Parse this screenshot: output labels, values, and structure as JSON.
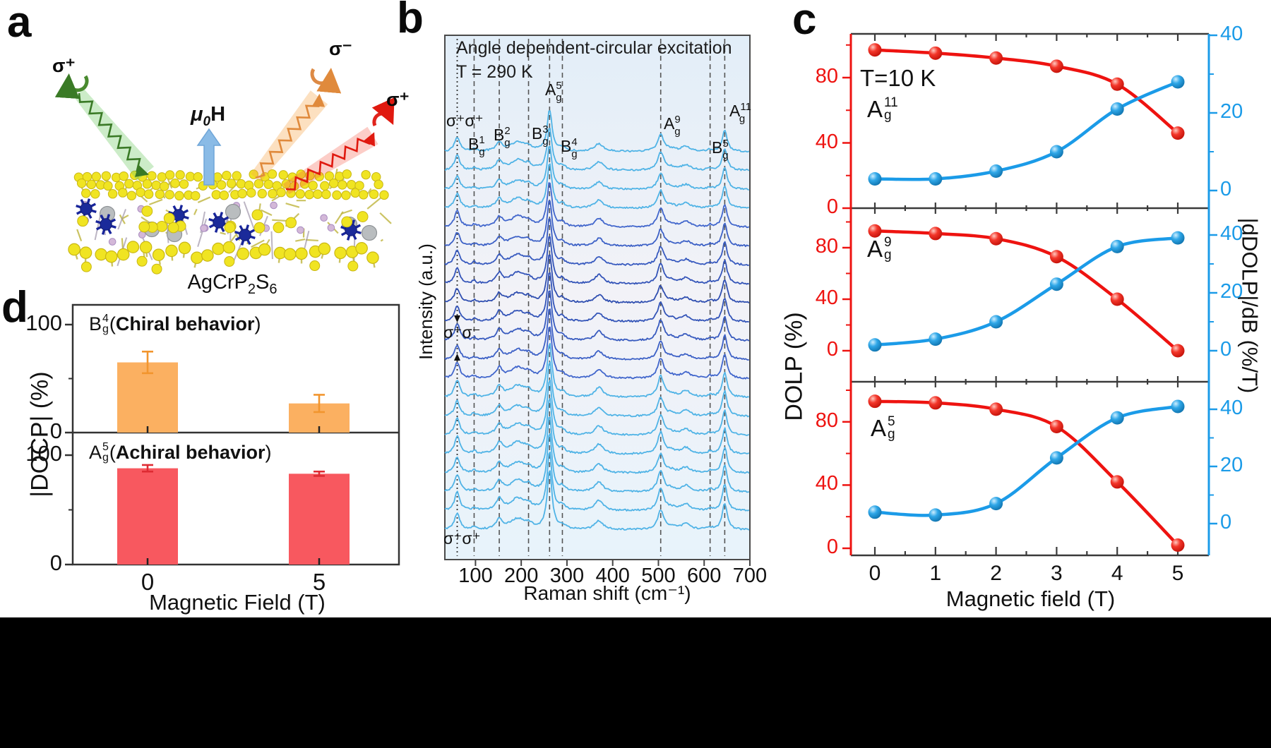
{
  "panel_a": {
    "label": "a",
    "sigma_incident": "σ⁺",
    "sigma_out_cross": "σ⁻",
    "sigma_out_co": "σ⁺",
    "field": {
      "mu": "μ",
      "sub": "0",
      "h": "H"
    },
    "material": {
      "p1": "AgCrP",
      "s1": "2",
      "p2": "S",
      "s2": "6"
    },
    "colors": {
      "incident_beam": "#3a7a26",
      "cross_beam": "#e08a3c",
      "co_beam": "#e0190f",
      "field_arrow": "#8abbe6",
      "sulfur": "#f0e422",
      "chromium": "#1b2a9a",
      "silver": "#b9bdbf",
      "phosphorus": "#d3b8d8"
    }
  },
  "panel_b": {
    "label": "b",
    "title1": "Angle dependent-circular excitation",
    "title2": "T = 290 K",
    "xlabel": "Raman shift (cm⁻¹)",
    "ylabel": "Intensity (a.u.)",
    "pol_top": "σ⁺σ⁺",
    "pol_mid": "σ⁺σ⁻",
    "pol_bottom": "σ⁺σ⁺"
  },
  "panel_c": {
    "label": "c",
    "annotation": "T=10 K",
    "xlabel": "Magnetic field (T)",
    "ylabel_left": "DOLP (%)",
    "ylabel_right": "|dDOLP|/dB (%/T)"
  },
  "panel_d": {
    "label": "d",
    "xlabel": "Magnetic Field (T)",
    "ylabel": "|DOCP| (%)",
    "paren_open": "(",
    "paren_close": ")"
  },
  "chart_data": [
    {
      "id": "raman_spectra",
      "type": "line",
      "title": "Angle dependent-circular excitation",
      "subtitle": "T = 290 K",
      "xlabel": "Raman shift (cm⁻¹)",
      "ylabel": "Intensity (a.u.)",
      "x_range": [
        33,
        700
      ],
      "x_ticks": [
        100,
        200,
        300,
        400,
        500,
        600,
        700
      ],
      "n_traces": 21,
      "trace_colors": {
        "copolarized": "#4fb3e6",
        "crosspolarized": "#3c5ec6"
      },
      "polarization_labels": {
        "top": "σ⁺σ⁺",
        "middle": "σ⁺σ⁻",
        "bottom": "σ⁺σ⁺"
      },
      "marked_peaks": [
        {
          "label": "σ⁺σ⁺",
          "shift": 60,
          "line": "dotted"
        },
        {
          "letter": "B",
          "sub": "g",
          "sup": "1",
          "shift": 97,
          "line": "dashed"
        },
        {
          "letter": "B",
          "sub": "g",
          "sup": "2",
          "shift": 152,
          "line": "dashed"
        },
        {
          "letter": "B",
          "sub": "g",
          "sup": "3",
          "shift": 216,
          "line": "dashed"
        },
        {
          "letter": "A",
          "sub": "g",
          "sup": "5",
          "shift": 262,
          "line": "dashed"
        },
        {
          "letter": "B",
          "sub": "g",
          "sup": "4",
          "shift": 290,
          "line": "dashed"
        },
        {
          "letter": "A",
          "sub": "g",
          "sup": "9",
          "shift": 505,
          "line": "dashed"
        },
        {
          "letter": "B",
          "sub": "g",
          "sup": "5",
          "shift": 613,
          "line": "dashed"
        },
        {
          "letter": "A",
          "sub": "g",
          "sup": "11",
          "shift": 645,
          "line": "dashed"
        }
      ],
      "unlabeled_peaks": [
        192,
        370,
        528,
        560
      ]
    },
    {
      "id": "dolp_Ag11",
      "type": "line",
      "mode": {
        "letter": "A",
        "sub": "g",
        "sup": "11"
      },
      "x": [
        0,
        1,
        2,
        3,
        4,
        5
      ],
      "series": [
        {
          "name": "DOLP (%)",
          "axis": "left",
          "color": "#ee1310",
          "values": [
            97,
            95,
            92,
            87,
            76,
            46
          ]
        },
        {
          "name": "|dDOLP|/dB (%/T)",
          "axis": "right",
          "color": "#1b9be8",
          "values": [
            3,
            3,
            5,
            10,
            21,
            28
          ]
        }
      ],
      "left_ticks": [
        0,
        40,
        80
      ],
      "right_ticks": [
        0,
        20,
        40
      ]
    },
    {
      "id": "dolp_Ag9",
      "type": "line",
      "mode": {
        "letter": "A",
        "sub": "g",
        "sup": "9"
      },
      "x": [
        0,
        1,
        2,
        3,
        4,
        5
      ],
      "series": [
        {
          "name": "DOLP (%)",
          "axis": "left",
          "color": "#ee1310",
          "values": [
            93,
            91,
            87,
            73,
            40,
            0
          ]
        },
        {
          "name": "|dDOLP|/dB (%/T)",
          "axis": "right",
          "color": "#1b9be8",
          "values": [
            2,
            4,
            10,
            23,
            36,
            39
          ]
        }
      ],
      "left_ticks": [
        0,
        40,
        80
      ],
      "right_ticks": [
        0,
        20,
        40
      ]
    },
    {
      "id": "dolp_Ag5",
      "type": "line",
      "mode": {
        "letter": "A",
        "sub": "g",
        "sup": "5"
      },
      "x": [
        0,
        1,
        2,
        3,
        4,
        5
      ],
      "series": [
        {
          "name": "DOLP (%)",
          "axis": "left",
          "color": "#ee1310",
          "values": [
            93,
            92,
            88,
            77,
            42,
            2
          ]
        },
        {
          "name": "|dDOLP|/dB (%/T)",
          "axis": "right",
          "color": "#1b9be8",
          "values": [
            4,
            3,
            7,
            23,
            37,
            41
          ]
        }
      ],
      "left_ticks": [
        0,
        40,
        80
      ],
      "right_ticks": [
        0,
        20,
        40
      ]
    },
    {
      "id": "docp_bars",
      "type": "bar",
      "categories": [
        "0",
        "5"
      ],
      "xlabel": "Magnetic Field (T)",
      "ylabel": "|DOCP| (%)",
      "y_ticks": [
        0,
        100
      ],
      "ylim": [
        0,
        118
      ],
      "series": [
        {
          "mode": {
            "letter": "B",
            "sub": "g",
            "sup": "4"
          },
          "behavior": "Chiral behavior",
          "color": "#fbb061",
          "error_color": "#f2952e",
          "values": [
            65,
            27
          ],
          "errors": [
            10,
            8
          ]
        },
        {
          "mode": {
            "letter": "A",
            "sub": "g",
            "sup": "5"
          },
          "behavior": "Achiral behavior",
          "color": "#f8585f",
          "error_color": "#de2b33",
          "values": [
            88,
            83
          ],
          "errors": [
            3,
            2
          ]
        }
      ]
    }
  ]
}
